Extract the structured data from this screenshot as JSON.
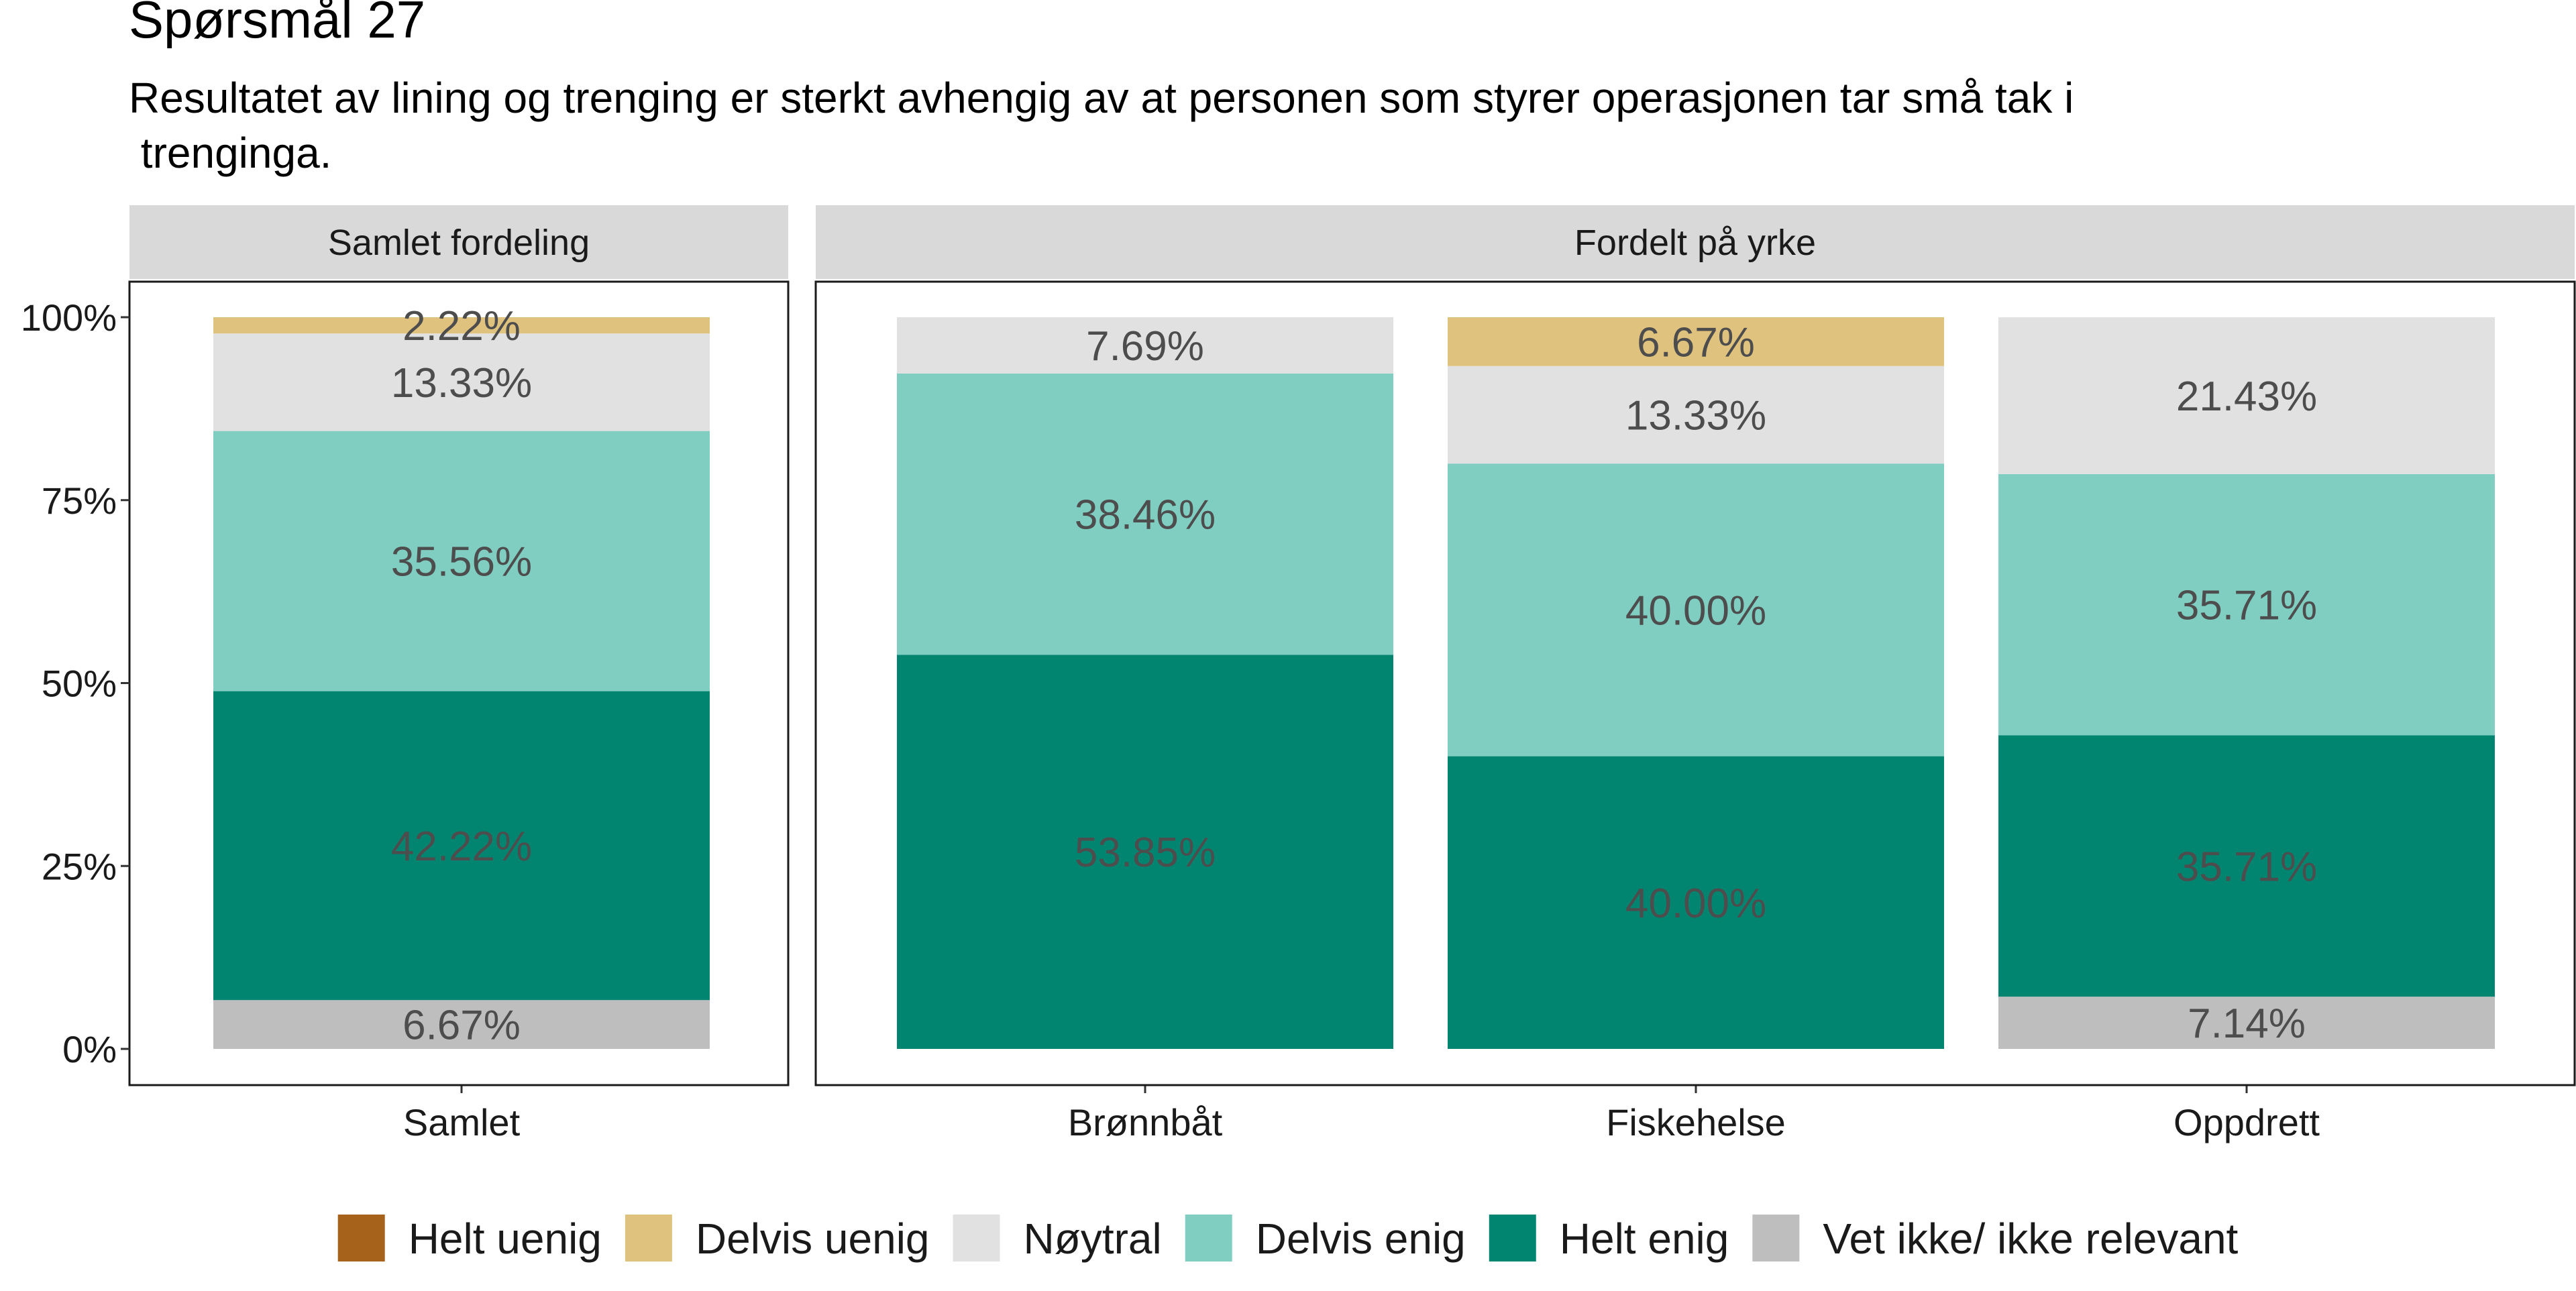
{
  "chart_data": {
    "type": "bar",
    "title": "Spørsmål 27",
    "subtitle_lines": [
      "Resultatet av lining og trenging er sterkt avhengig av at personen som styrer operasjonen tar små tak i",
      " trenginga."
    ],
    "ylim": [
      0,
      100
    ],
    "y_ticks": [
      {
        "value": 0,
        "label": "0%"
      },
      {
        "value": 25,
        "label": "25%"
      },
      {
        "value": 50,
        "label": "50%"
      },
      {
        "value": 75,
        "label": "75%"
      },
      {
        "value": 100,
        "label": "100%"
      }
    ],
    "grid": false,
    "legend_position": "bottom",
    "stack_order": [
      "Vet ikke/ ikke relevant",
      "Helt enig",
      "Delvis enig",
      "Nøytral",
      "Delvis uenig",
      "Helt uenig"
    ],
    "legend": [
      {
        "name": "Helt uenig",
        "color": "#A6611A"
      },
      {
        "name": "Delvis uenig",
        "color": "#DFC27D"
      },
      {
        "name": "Nøytral",
        "color": "#E1E1E1"
      },
      {
        "name": "Delvis enig",
        "color": "#80CDC1"
      },
      {
        "name": "Helt enig",
        "color": "#018571"
      },
      {
        "name": "Vet ikke/ ikke relevant",
        "color": "#BEBEBE"
      }
    ],
    "panels": [
      {
        "strip": "Samlet fordeling",
        "categories": [
          "Samlet"
        ],
        "bars": [
          {
            "category": "Samlet",
            "segments": [
              {
                "name": "Vet ikke/ ikke relevant",
                "value": 6.67,
                "label": "6.67%"
              },
              {
                "name": "Helt enig",
                "value": 42.22,
                "label": "42.22%"
              },
              {
                "name": "Delvis enig",
                "value": 35.56,
                "label": "35.56%"
              },
              {
                "name": "Nøytral",
                "value": 13.33,
                "label": "13.33%"
              },
              {
                "name": "Delvis uenig",
                "value": 2.22,
                "label": "2.22%"
              }
            ]
          }
        ]
      },
      {
        "strip": "Fordelt på yrke",
        "categories": [
          "Brønnbåt",
          "Fiskehelse",
          "Oppdrett"
        ],
        "bars": [
          {
            "category": "Brønnbåt",
            "segments": [
              {
                "name": "Helt enig",
                "value": 53.85,
                "label": "53.85%"
              },
              {
                "name": "Delvis enig",
                "value": 38.46,
                "label": "38.46%"
              },
              {
                "name": "Nøytral",
                "value": 7.69,
                "label": "7.69%"
              }
            ]
          },
          {
            "category": "Fiskehelse",
            "segments": [
              {
                "name": "Helt enig",
                "value": 40.0,
                "label": "40.00%"
              },
              {
                "name": "Delvis enig",
                "value": 40.0,
                "label": "40.00%"
              },
              {
                "name": "Nøytral",
                "value": 13.33,
                "label": "13.33%"
              },
              {
                "name": "Delvis uenig",
                "value": 6.67,
                "label": "6.67%"
              }
            ]
          },
          {
            "category": "Oppdrett",
            "segments": [
              {
                "name": "Vet ikke/ ikke relevant",
                "value": 7.14,
                "label": "7.14%"
              },
              {
                "name": "Helt enig",
                "value": 35.71,
                "label": "35.71%"
              },
              {
                "name": "Delvis enig",
                "value": 35.71,
                "label": "35.71%"
              },
              {
                "name": "Nøytral",
                "value": 21.43,
                "label": "21.43%"
              }
            ]
          }
        ]
      }
    ]
  }
}
